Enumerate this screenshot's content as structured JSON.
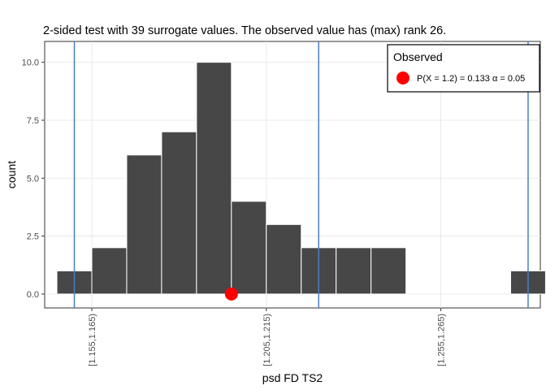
{
  "chart_data": {
    "type": "bar",
    "title": "2-sided test with 39 surrogate values. The observed value has (max) rank 26.",
    "xlabel": "psd FD TS2",
    "ylabel": "count",
    "x_tick_labels": [
      "[1.155,1.165)",
      "[1.205,1.215)",
      "[1.255,1.265)"
    ],
    "y_tick_labels": [
      "0.0",
      "2.5",
      "5.0",
      "7.5",
      "10.0"
    ],
    "ylim": [
      0,
      10.5
    ],
    "bin_width": 0.01,
    "bins": [
      {
        "start": 1.15,
        "count": 1
      },
      {
        "start": 1.16,
        "count": 2
      },
      {
        "start": 1.17,
        "count": 6
      },
      {
        "start": 1.18,
        "count": 7
      },
      {
        "start": 1.19,
        "count": 10
      },
      {
        "start": 1.2,
        "count": 4
      },
      {
        "start": 1.21,
        "count": 3
      },
      {
        "start": 1.22,
        "count": 2
      },
      {
        "start": 1.23,
        "count": 2
      },
      {
        "start": 1.24,
        "count": 2
      },
      {
        "start": 1.25,
        "count": 0
      },
      {
        "start": 1.26,
        "count": 0
      },
      {
        "start": 1.27,
        "count": 0
      },
      {
        "start": 1.28,
        "count": 1
      }
    ],
    "observed_point": {
      "x": 1.2,
      "y": 0
    },
    "reference_lines_x": [
      1.155,
      1.225,
      1.285
    ],
    "legend": {
      "title": "Observed",
      "entry": "P(X = 1.2) = 0.133  α = 0.05",
      "placement": "top-right"
    },
    "colors": {
      "bar_fill": "#474747",
      "bar_outline": "#ffffff",
      "point": "#ff0000",
      "vline": "#4a7fc1",
      "grid": "#e5e5e5"
    }
  }
}
